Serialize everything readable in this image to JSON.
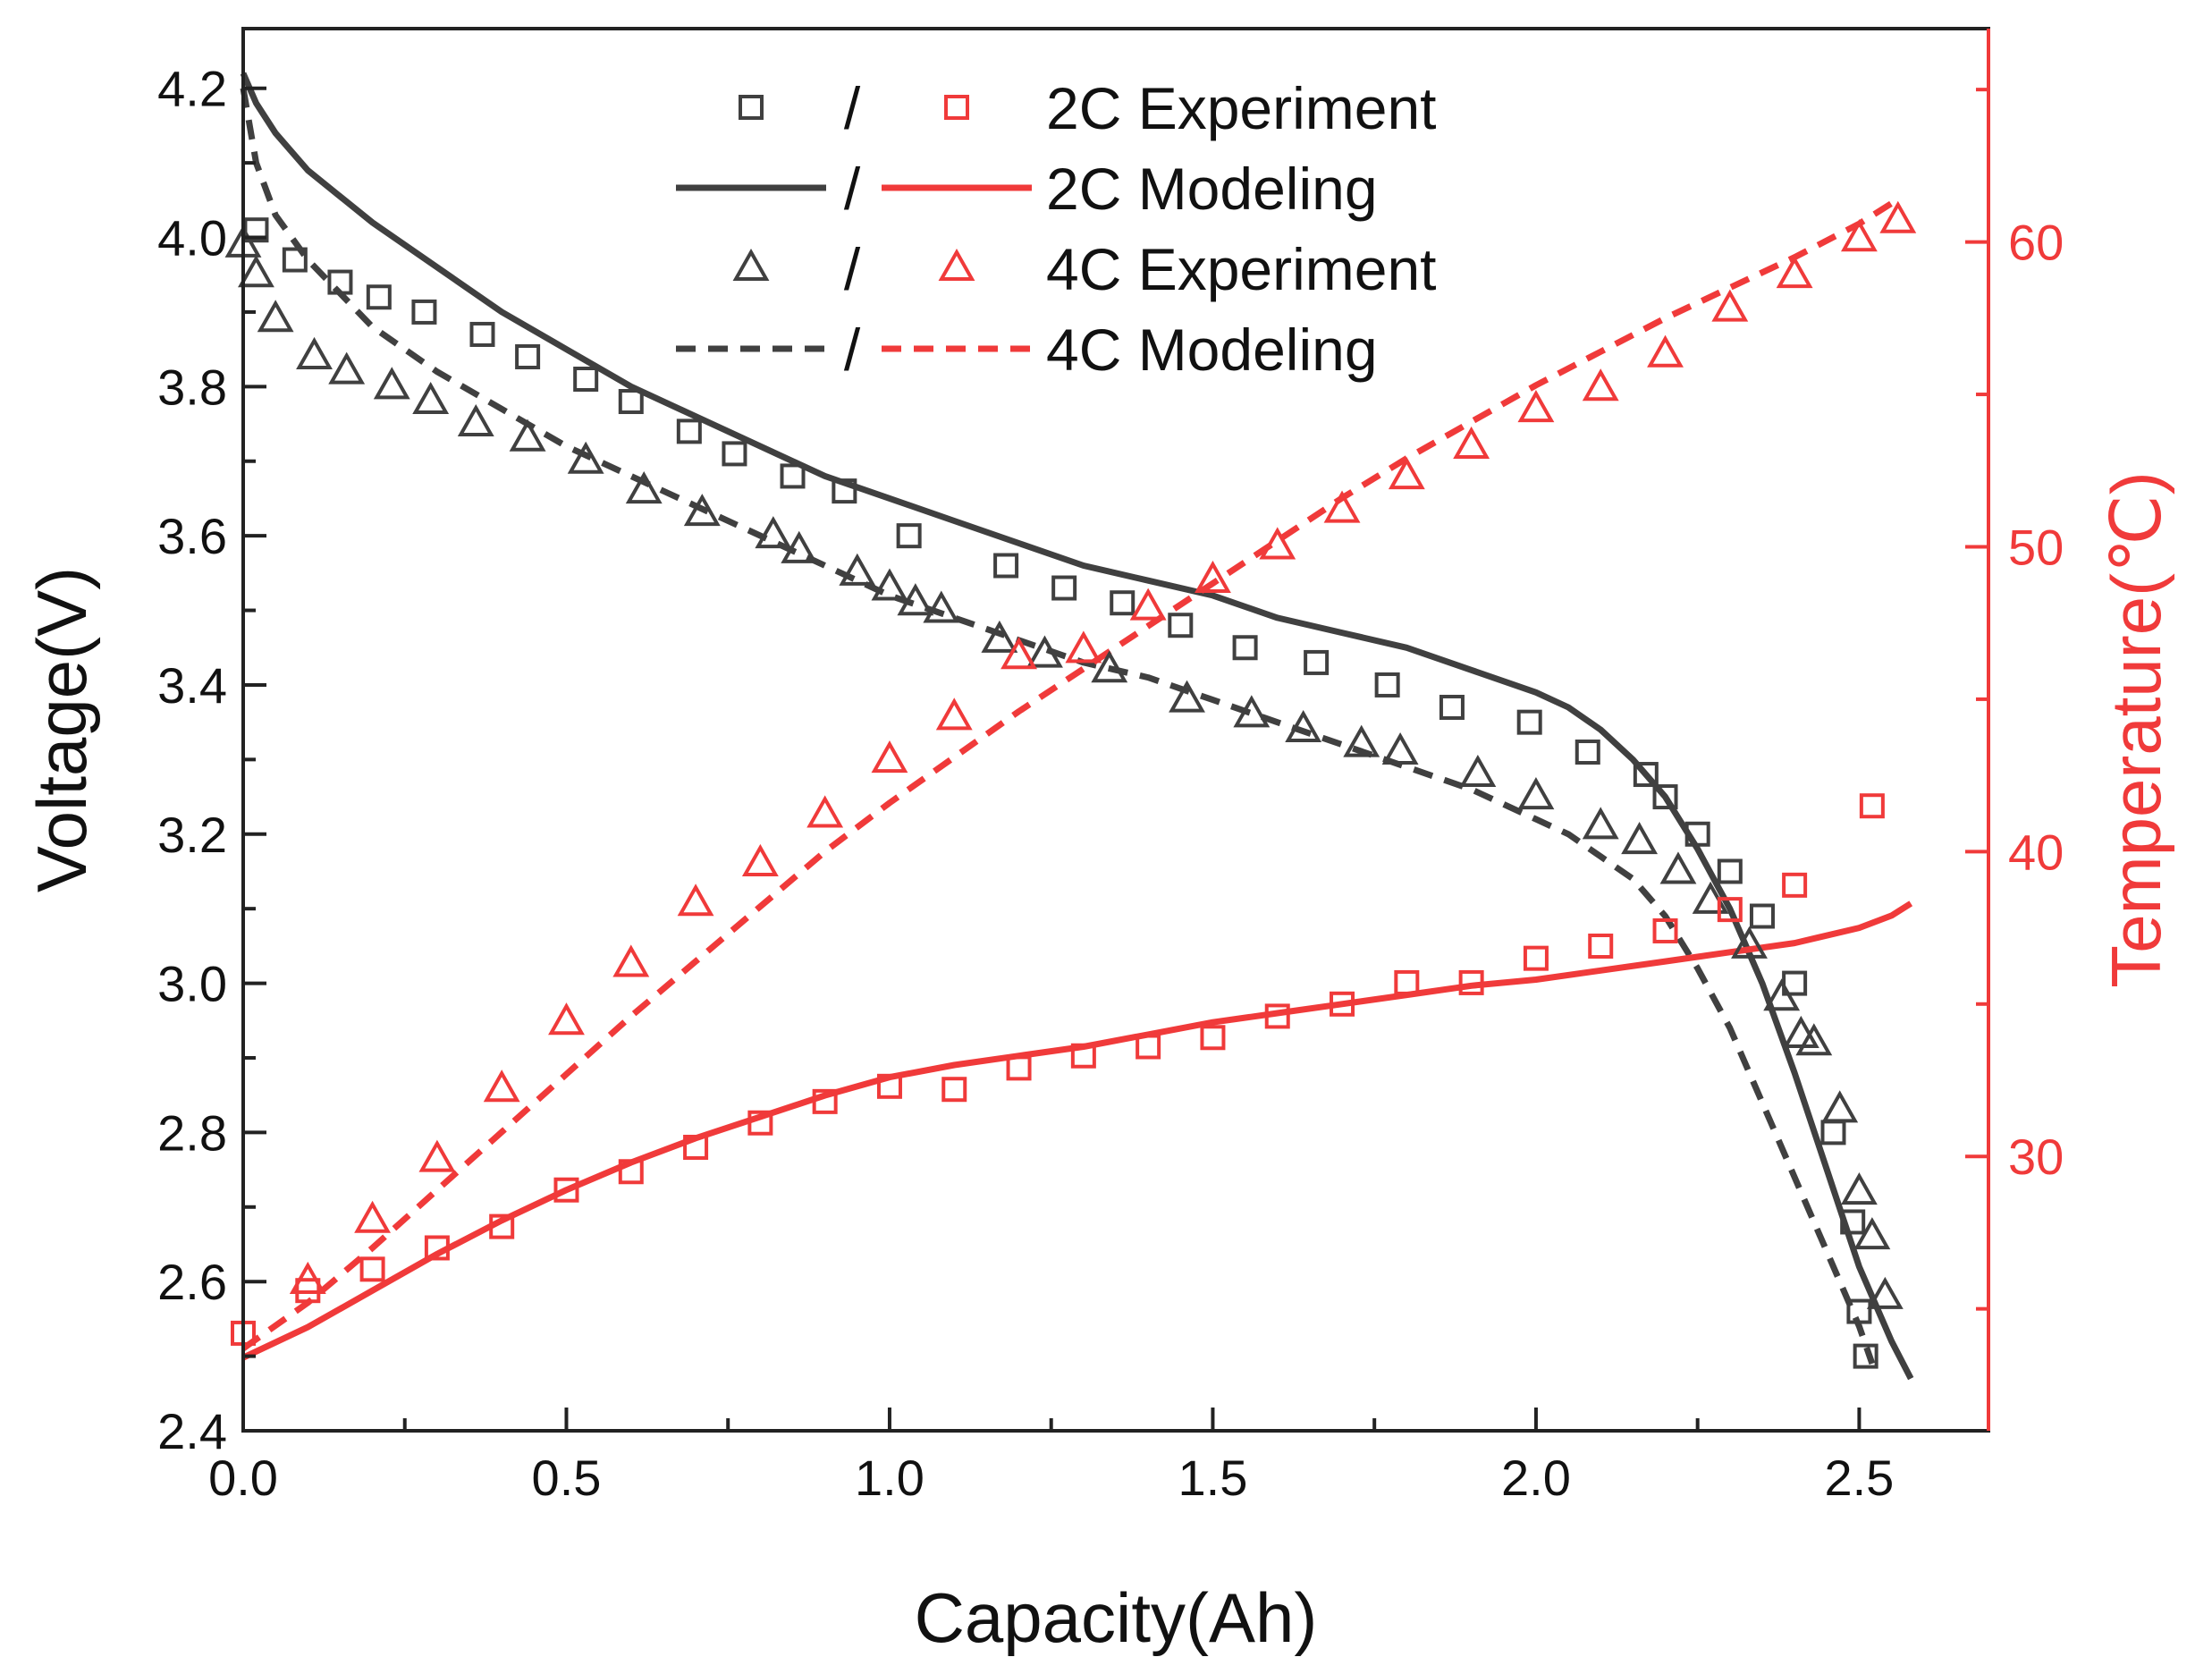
{
  "chart_data": {
    "type": "line",
    "xlabel": "Capacity(Ah)",
    "ylabel_left": "Voltage(V)",
    "ylabel_right": "Temperature(℃)",
    "xlim": [
      0,
      2.7
    ],
    "ylim_left": [
      2.4,
      4.28
    ],
    "ylim_right": [
      21,
      67
    ],
    "x_ticks": [
      "0.0",
      "0.5",
      "1.0",
      "1.5",
      "2.0",
      "2.5"
    ],
    "y_left_ticks": [
      "2.4",
      "2.6",
      "2.8",
      "3.0",
      "3.2",
      "3.4",
      "3.6",
      "3.8",
      "4.0",
      "4.2"
    ],
    "y_right_ticks": [
      "30",
      "40",
      "50",
      "60"
    ],
    "legend_position": "top",
    "legend": [
      {
        "label": "2C Experiment",
        "separator": "/",
        "marker": "square",
        "style": "marker"
      },
      {
        "label": "2C Modeling",
        "separator": "/",
        "style": "solid"
      },
      {
        "label": "4C Experiment",
        "separator": "/",
        "marker": "triangle",
        "style": "marker"
      },
      {
        "label": "4C Modeling",
        "separator": "/",
        "style": "dashed"
      }
    ],
    "colors": {
      "voltage": "#404040",
      "temperature": "#f03a3a"
    },
    "series": [
      {
        "key": "v2c_exp",
        "axis": "left",
        "style": "marker",
        "marker": "square",
        "color": "#404040",
        "x": [
          0.02,
          0.08,
          0.15,
          0.21,
          0.28,
          0.37,
          0.44,
          0.53,
          0.6,
          0.69,
          0.76,
          0.85,
          0.93,
          1.03,
          1.18,
          1.27,
          1.36,
          1.45,
          1.55,
          1.66,
          1.77,
          1.87,
          1.99,
          2.08,
          2.17,
          2.2,
          2.25,
          2.3,
          2.35,
          2.4,
          2.46,
          2.49,
          2.5,
          2.51
        ],
        "y": [
          4.01,
          3.97,
          3.94,
          3.92,
          3.9,
          3.87,
          3.84,
          3.81,
          3.78,
          3.74,
          3.71,
          3.68,
          3.66,
          3.6,
          3.56,
          3.53,
          3.51,
          3.48,
          3.45,
          3.43,
          3.4,
          3.37,
          3.35,
          3.31,
          3.28,
          3.25,
          3.2,
          3.15,
          3.09,
          3.0,
          2.8,
          2.68,
          2.56,
          2.5
        ]
      },
      {
        "key": "v4c_exp",
        "axis": "left",
        "style": "marker",
        "marker": "triangle",
        "color": "#404040",
        "x": [
          0.0,
          0.02,
          0.05,
          0.11,
          0.16,
          0.23,
          0.29,
          0.36,
          0.44,
          0.53,
          0.62,
          0.71,
          0.82,
          0.86,
          0.95,
          1.0,
          1.04,
          1.08,
          1.17,
          1.24,
          1.34,
          1.46,
          1.56,
          1.64,
          1.73,
          1.79,
          1.91,
          2.0,
          2.1,
          2.16,
          2.22,
          2.27,
          2.33,
          2.38,
          2.41,
          2.43,
          2.47,
          2.5,
          2.52,
          2.54
        ],
        "y": [
          3.99,
          3.95,
          3.89,
          3.84,
          3.82,
          3.8,
          3.78,
          3.75,
          3.73,
          3.7,
          3.66,
          3.63,
          3.6,
          3.58,
          3.55,
          3.53,
          3.51,
          3.5,
          3.46,
          3.44,
          3.42,
          3.38,
          3.36,
          3.34,
          3.32,
          3.31,
          3.28,
          3.25,
          3.21,
          3.19,
          3.15,
          3.11,
          3.05,
          2.98,
          2.93,
          2.92,
          2.83,
          2.72,
          2.66,
          2.58
        ]
      },
      {
        "key": "v2c_model",
        "axis": "left",
        "style": "solid",
        "color": "#404040",
        "x": [
          0.0,
          0.02,
          0.05,
          0.1,
          0.2,
          0.3,
          0.4,
          0.5,
          0.6,
          0.7,
          0.8,
          0.9,
          1.0,
          1.1,
          1.2,
          1.3,
          1.4,
          1.5,
          1.6,
          1.7,
          1.8,
          1.9,
          2.0,
          2.05,
          2.1,
          2.15,
          2.2,
          2.25,
          2.3,
          2.35,
          2.4,
          2.45,
          2.5,
          2.55,
          2.58
        ],
        "y": [
          4.22,
          4.18,
          4.14,
          4.09,
          4.02,
          3.96,
          3.9,
          3.85,
          3.8,
          3.76,
          3.72,
          3.68,
          3.65,
          3.62,
          3.59,
          3.56,
          3.54,
          3.52,
          3.49,
          3.47,
          3.45,
          3.42,
          3.39,
          3.37,
          3.34,
          3.3,
          3.25,
          3.18,
          3.1,
          3.0,
          2.88,
          2.75,
          2.62,
          2.52,
          2.47
        ]
      },
      {
        "key": "v4c_model",
        "axis": "left",
        "style": "dashed",
        "color": "#404040",
        "x": [
          0.0,
          0.02,
          0.05,
          0.1,
          0.2,
          0.3,
          0.4,
          0.5,
          0.6,
          0.7,
          0.8,
          0.9,
          1.0,
          1.1,
          1.2,
          1.3,
          1.4,
          1.5,
          1.6,
          1.7,
          1.8,
          1.9,
          2.0,
          2.05,
          2.1,
          2.15,
          2.2,
          2.25,
          2.3,
          2.35,
          2.4,
          2.45,
          2.5,
          2.52
        ],
        "y": [
          4.2,
          4.1,
          4.03,
          3.97,
          3.88,
          3.82,
          3.77,
          3.72,
          3.68,
          3.64,
          3.6,
          3.56,
          3.52,
          3.49,
          3.46,
          3.43,
          3.41,
          3.38,
          3.35,
          3.32,
          3.29,
          3.26,
          3.22,
          3.2,
          3.17,
          3.14,
          3.09,
          3.02,
          2.94,
          2.84,
          2.74,
          2.64,
          2.54,
          2.49
        ]
      },
      {
        "key": "t2c_exp",
        "axis": "right",
        "style": "marker",
        "marker": "square",
        "color": "#f03a3a",
        "x": [
          0.0,
          0.1,
          0.2,
          0.3,
          0.4,
          0.5,
          0.6,
          0.7,
          0.8,
          0.9,
          1.0,
          1.1,
          1.2,
          1.3,
          1.4,
          1.5,
          1.6,
          1.7,
          1.8,
          1.9,
          2.0,
          2.1,
          2.2,
          2.3,
          2.4,
          2.52
        ],
        "y": [
          24.2,
          25.6,
          26.3,
          27.0,
          27.7,
          28.9,
          29.5,
          30.3,
          31.1,
          31.8,
          32.3,
          32.2,
          32.9,
          33.3,
          33.6,
          33.9,
          34.6,
          35.0,
          35.7,
          35.7,
          36.5,
          36.9,
          37.4,
          38.1,
          38.9,
          41.5
        ]
      },
      {
        "key": "t4c_exp",
        "axis": "right",
        "style": "marker",
        "marker": "triangle",
        "color": "#f03a3a",
        "x": [
          0.1,
          0.2,
          0.3,
          0.4,
          0.5,
          0.6,
          0.7,
          0.8,
          0.9,
          1.0,
          1.1,
          1.2,
          1.3,
          1.4,
          1.5,
          1.6,
          1.7,
          1.8,
          1.9,
          2.0,
          2.1,
          2.2,
          2.3,
          2.4,
          2.5,
          2.56
        ],
        "y": [
          25.9,
          27.9,
          29.9,
          32.2,
          34.4,
          36.3,
          38.3,
          39.6,
          41.2,
          43.0,
          44.4,
          46.4,
          46.6,
          48.0,
          48.9,
          50.0,
          51.2,
          52.3,
          53.3,
          54.5,
          55.2,
          56.3,
          57.8,
          58.9,
          60.1,
          60.7
        ]
      },
      {
        "key": "t2c_model",
        "axis": "right",
        "style": "solid",
        "color": "#f03a3a",
        "x": [
          0.0,
          0.1,
          0.2,
          0.3,
          0.4,
          0.5,
          0.6,
          0.7,
          0.8,
          0.9,
          1.0,
          1.1,
          1.2,
          1.3,
          1.4,
          1.5,
          1.6,
          1.7,
          1.8,
          1.9,
          2.0,
          2.1,
          2.2,
          2.3,
          2.4,
          2.5,
          2.55,
          2.58
        ],
        "y": [
          23.4,
          24.4,
          25.6,
          26.8,
          27.9,
          28.9,
          29.8,
          30.6,
          31.3,
          32.0,
          32.6,
          33.0,
          33.3,
          33.6,
          34.0,
          34.4,
          34.7,
          35.0,
          35.3,
          35.6,
          35.8,
          36.1,
          36.4,
          36.7,
          37.0,
          37.5,
          37.9,
          38.3
        ]
      },
      {
        "key": "t4c_model",
        "axis": "right",
        "style": "dashed",
        "color": "#f03a3a",
        "x": [
          0.0,
          0.1,
          0.2,
          0.3,
          0.4,
          0.5,
          0.6,
          0.7,
          0.8,
          0.9,
          1.0,
          1.1,
          1.2,
          1.3,
          1.4,
          1.5,
          1.6,
          1.7,
          1.8,
          1.9,
          2.0,
          2.1,
          2.2,
          2.3,
          2.4,
          2.5,
          2.56
        ],
        "y": [
          23.7,
          25.2,
          27.0,
          28.9,
          30.8,
          32.7,
          34.6,
          36.4,
          38.2,
          40.0,
          41.6,
          43.1,
          44.6,
          46.0,
          47.4,
          48.8,
          50.2,
          51.6,
          52.9,
          54.1,
          55.3,
          56.4,
          57.5,
          58.5,
          59.5,
          60.6,
          61.4
        ]
      }
    ]
  }
}
